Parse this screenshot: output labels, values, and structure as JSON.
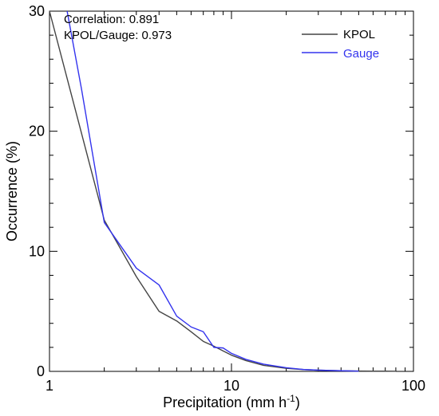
{
  "chart_data": {
    "type": "line",
    "title": "",
    "xlabel": "Precipitation (mm h",
    "xlabel_sup": "-1",
    "xlabel_close": ")",
    "ylabel": "Occurrence (%)",
    "xscale": "log",
    "xlim": [
      1,
      100
    ],
    "ylim": [
      0,
      30
    ],
    "xticks": [
      {
        "value": 1,
        "label": "1"
      },
      {
        "value": 10,
        "label": "10"
      },
      {
        "value": 100,
        "label": "100"
      }
    ],
    "yticks": [
      {
        "value": 0,
        "label": "0"
      },
      {
        "value": 10,
        "label": "10"
      },
      {
        "value": 20,
        "label": "20"
      },
      {
        "value": 30,
        "label": "30"
      }
    ],
    "grid": false,
    "legend_position": "top-right",
    "annotations": [
      "Correlation: 0.891",
      "KPOL/Gauge: 0.973"
    ],
    "series": [
      {
        "name": "KPOL",
        "color": "#444444",
        "x": [
          1,
          2,
          3,
          4,
          5,
          6,
          7,
          8,
          9,
          10,
          12,
          15,
          20,
          25,
          30,
          40,
          50,
          60,
          70,
          80
        ],
        "y": [
          30,
          12.6,
          7.9,
          5.0,
          4.2,
          3.3,
          2.5,
          2.1,
          1.7,
          1.35,
          0.9,
          0.5,
          0.25,
          0.15,
          0.1,
          0.05,
          0.03,
          0.02,
          0.02,
          0.01
        ]
      },
      {
        "name": "Gauge",
        "color": "#3333ee",
        "x": [
          1.25,
          1.5,
          2,
          3,
          4,
          5,
          6,
          7,
          8,
          9,
          10,
          12,
          15,
          20,
          25,
          30,
          40,
          50
        ],
        "y": [
          30,
          23.5,
          12.4,
          8.6,
          7.2,
          4.6,
          3.7,
          3.3,
          2.0,
          1.95,
          1.5,
          1.0,
          0.6,
          0.3,
          0.15,
          0.1,
          0.05,
          0.02
        ]
      }
    ]
  }
}
